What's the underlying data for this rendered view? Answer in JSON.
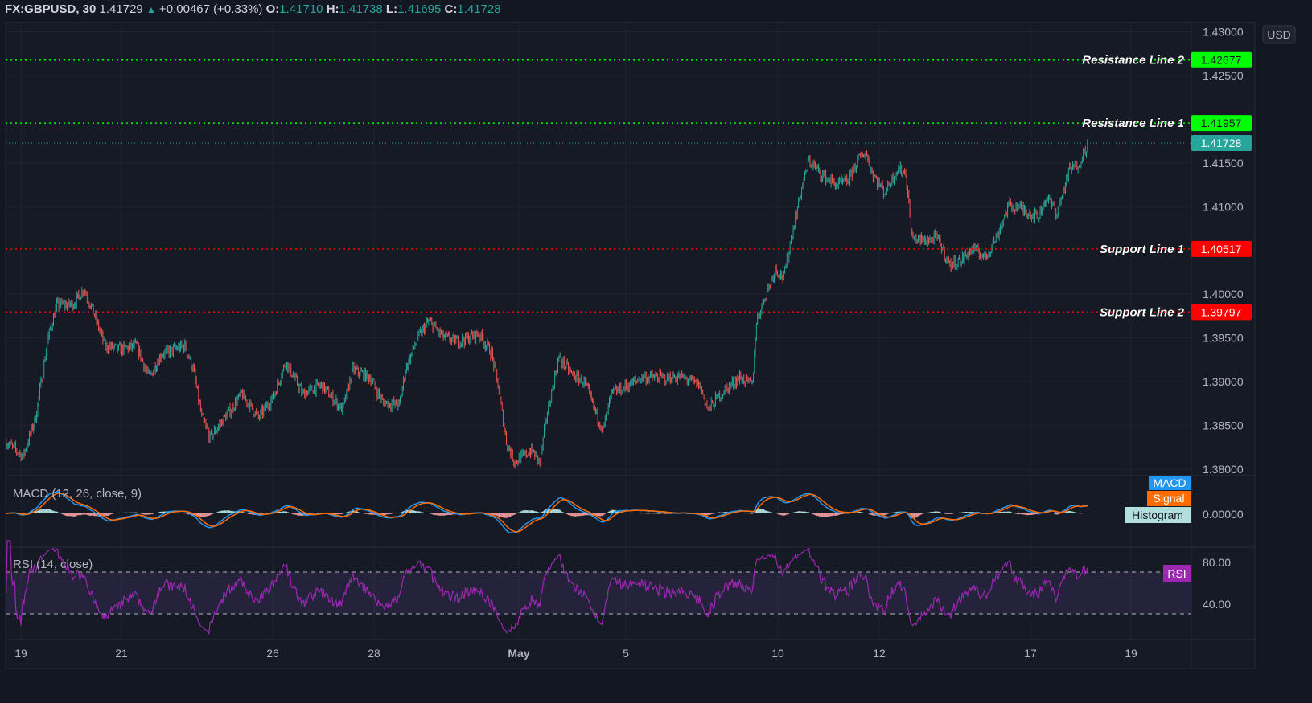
{
  "header": {
    "symbol": "FX:GBPUSD, 30",
    "last": "1.41729",
    "change": "+0.00467 (+0.33%)",
    "o_label": "O:",
    "o": "1.41710",
    "h_label": "H:",
    "h": "1.41738",
    "l_label": "L:",
    "l": "1.41695",
    "c_label": "C:",
    "c": "1.41728"
  },
  "colors": {
    "background": "#131722",
    "up": "#26a69a",
    "down": "#ef5350",
    "resistance": "#00ff00",
    "support": "#ff0000",
    "macd": "#2196f3",
    "signal": "#ff6d00",
    "rsi": "#9c27b0",
    "last_price": "#26a69a"
  },
  "chart_data": {
    "type": "candlestick",
    "symbol": "FX:GBPUSD",
    "interval": "30",
    "currency": "USD",
    "ylim": [
      1.378,
      1.431
    ],
    "y_ticks": [
      "1.43000",
      "1.42500",
      "1.41500",
      "1.41000",
      "1.40000",
      "1.39500",
      "1.39000",
      "1.38500",
      "1.38000"
    ],
    "x_ticks": [
      "19",
      "21",
      "26",
      "28",
      "May",
      "5",
      "10",
      "12",
      "17",
      "19"
    ],
    "approx_close_path": [
      [
        "04-16 17:00",
        1.3831
      ],
      [
        "04-19 01:00",
        1.3815
      ],
      [
        "04-19 07:00",
        1.3859
      ],
      [
        "04-19 13:00",
        1.3951
      ],
      [
        "04-19 17:00",
        1.3987
      ],
      [
        "04-20 01:00",
        1.3989
      ],
      [
        "04-20 06:00",
        1.4006
      ],
      [
        "04-20 10:00",
        1.3983
      ],
      [
        "04-20 16:00",
        1.3941
      ],
      [
        "04-20 23:00",
        1.3937
      ],
      [
        "04-21 07:00",
        1.3941
      ],
      [
        "04-21 13:00",
        1.3905
      ],
      [
        "04-21 19:00",
        1.3932
      ],
      [
        "04-22 06:00",
        1.3941
      ],
      [
        "04-22 10:00",
        1.3914
      ],
      [
        "04-22 14:00",
        1.3859
      ],
      [
        "04-22 18:00",
        1.3836
      ],
      [
        "04-23 01:00",
        1.3859
      ],
      [
        "04-23 09:00",
        1.3886
      ],
      [
        "04-23 17:00",
        1.3859
      ],
      [
        "04-26 00:00",
        1.3882
      ],
      [
        "04-26 06:00",
        1.3923
      ],
      [
        "04-26 14:00",
        1.3886
      ],
      [
        "04-26 23:00",
        1.3896
      ],
      [
        "04-27 09:00",
        1.3868
      ],
      [
        "04-27 14:00",
        1.3914
      ],
      [
        "04-27 22:00",
        1.3905
      ],
      [
        "04-28 04:00",
        1.3877
      ],
      [
        "04-28 12:00",
        1.3873
      ],
      [
        "04-28 15:00",
        1.3914
      ],
      [
        "04-28 21:00",
        1.3951
      ],
      [
        "04-29 02:00",
        1.3969
      ],
      [
        "04-29 09:00",
        1.3951
      ],
      [
        "04-29 16:00",
        1.3946
      ],
      [
        "04-30 02:00",
        1.3955
      ],
      [
        "04-30 08:00",
        1.3932
      ],
      [
        "04-30 11:00",
        1.3896
      ],
      [
        "04-30 15:00",
        1.3831
      ],
      [
        "04-30 19:00",
        1.3808
      ],
      [
        "05-03 03:00",
        1.3822
      ],
      [
        "05-03 07:00",
        1.3808
      ],
      [
        "05-03 10:00",
        1.3859
      ],
      [
        "05-03 16:00",
        1.3928
      ],
      [
        "05-03 22:00",
        1.3909
      ],
      [
        "05-04 04:00",
        1.39
      ],
      [
        "05-04 09:00",
        1.3868
      ],
      [
        "05-04 13:00",
        1.3845
      ],
      [
        "05-04 17:00",
        1.3886
      ],
      [
        "05-05 01:00",
        1.3896
      ],
      [
        "05-05 08:00",
        1.3905
      ],
      [
        "05-05 16:00",
        1.3905
      ],
      [
        "05-06 03:00",
        1.3905
      ],
      [
        "05-06 11:00",
        1.3896
      ],
      [
        "05-06 15:00",
        1.3868
      ],
      [
        "05-06 21:00",
        1.3886
      ],
      [
        "05-07 06:00",
        1.3905
      ],
      [
        "05-07 12:00",
        1.3896
      ],
      [
        "05-07 14:00",
        1.3969
      ],
      [
        "05-07 18:00",
        1.3997
      ],
      [
        "05-07 23:00",
        1.4029
      ],
      [
        "05-10 03:00",
        1.4019
      ],
      [
        "05-10 07:00",
        1.407
      ],
      [
        "05-10 11:00",
        1.4116
      ],
      [
        "05-10 15:00",
        1.4153
      ],
      [
        "05-10 20:00",
        1.4139
      ],
      [
        "05-11 04:00",
        1.4125
      ],
      [
        "05-11 10:00",
        1.413
      ],
      [
        "05-11 14:00",
        1.4153
      ],
      [
        "05-11 18:00",
        1.4162
      ],
      [
        "05-11 21:00",
        1.4139
      ],
      [
        "05-12 03:00",
        1.4116
      ],
      [
        "05-12 09:00",
        1.4143
      ],
      [
        "05-12 13:00",
        1.4139
      ],
      [
        "05-12 16:00",
        1.4065
      ],
      [
        "05-12 22:00",
        1.4061
      ],
      [
        "05-13 04:00",
        1.4065
      ],
      [
        "05-13 10:00",
        1.4033
      ],
      [
        "05-13 15:00",
        1.4038
      ],
      [
        "05-13 21:00",
        1.4052
      ],
      [
        "05-14 03:00",
        1.4042
      ],
      [
        "05-14 09:00",
        1.407
      ],
      [
        "05-14 14:00",
        1.4102
      ],
      [
        "05-14 20:00",
        1.4098
      ],
      [
        "05-17 04:00",
        1.4088
      ],
      [
        "05-17 08:00",
        1.4111
      ],
      [
        "05-17 13:00",
        1.4093
      ],
      [
        "05-17 19:00",
        1.4143
      ],
      [
        "05-17 23:00",
        1.4148
      ],
      [
        "05-18 04:00",
        1.4173
      ]
    ],
    "levels": [
      {
        "name": "Resistance Line 2",
        "value": 1.42677,
        "label": "1.42677",
        "kind": "resistance"
      },
      {
        "name": "Resistance Line 1",
        "value": 1.41957,
        "label": "1.41957",
        "kind": "resistance"
      },
      {
        "name": "Support Line 1",
        "value": 1.40517,
        "label": "1.40517",
        "kind": "support"
      },
      {
        "name": "Support Line 2",
        "value": 1.39797,
        "label": "1.39797",
        "kind": "support"
      }
    ],
    "last_price": {
      "value": 1.41728,
      "label": "1.41728"
    },
    "currency_button": "USD",
    "macd": {
      "title": "MACD (12, 26, close, 9)",
      "tick": "0.00000",
      "legend": [
        "MACD",
        "Signal",
        "Histogram"
      ]
    },
    "rsi": {
      "title": "RSI (14, close)",
      "ticks": [
        "80.00",
        "40.00"
      ],
      "band": [
        30,
        70
      ],
      "legend": "RSI",
      "ylim": [
        20,
        95
      ]
    }
  }
}
